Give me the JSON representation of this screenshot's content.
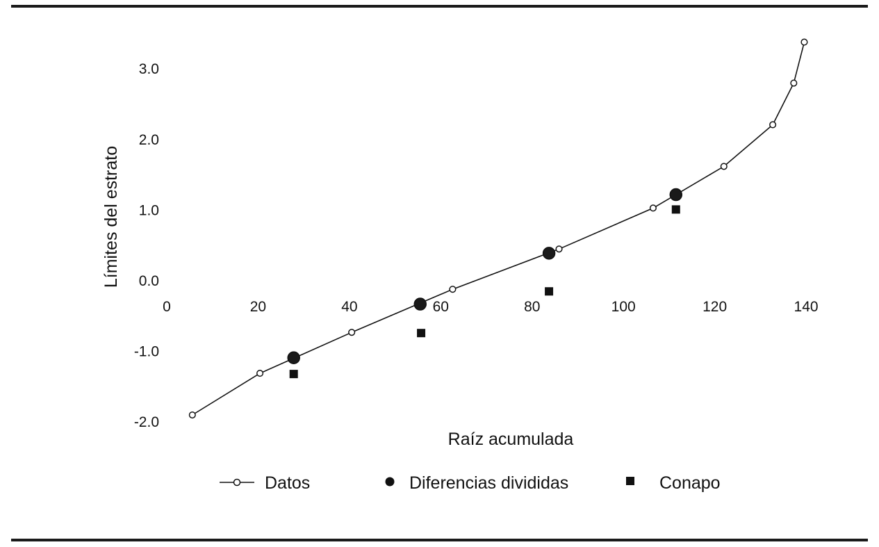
{
  "chart_data": {
    "type": "line",
    "title": "",
    "xlabel": "Raíz acumulada",
    "ylabel": "Límites del estrato",
    "xlim": [
      0,
      140
    ],
    "ylim": [
      -2.0,
      3.0
    ],
    "x_ticks": [
      "0",
      "20",
      "40",
      "60",
      "80",
      "100",
      "120",
      "140"
    ],
    "y_ticks": [
      "3.0",
      "2.0",
      "1.0",
      "0.0",
      "-1.0",
      "-2.0"
    ],
    "grid": false,
    "legend_position": "bottom",
    "series": [
      {
        "name": "Datos",
        "style": "line-open-circle",
        "x": [
          5.6,
          20.4,
          40.5,
          62.6,
          85.9,
          106.5,
          122.0,
          132.7,
          137.3,
          139.6
        ],
        "y": [
          -1.9,
          -1.31,
          -0.73,
          -0.12,
          0.45,
          1.03,
          1.62,
          2.21,
          2.8,
          3.38
        ]
      },
      {
        "name": "Diferencias divididas",
        "style": "filled-circle",
        "x": [
          27.8,
          55.5,
          83.7,
          111.5
        ],
        "y": [
          -1.09,
          -0.33,
          0.39,
          1.22
        ]
      },
      {
        "name": "Conapo",
        "style": "filled-square",
        "x": [
          27.8,
          55.7,
          83.7,
          111.5
        ],
        "y": [
          -1.32,
          -0.74,
          -0.15,
          1.01
        ]
      }
    ]
  }
}
